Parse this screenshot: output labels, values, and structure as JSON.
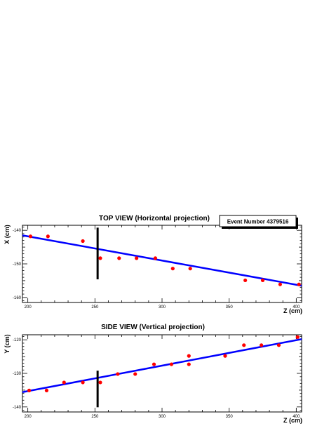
{
  "chart_data": [
    {
      "type": "scatter",
      "title": "TOP VIEW (Horizontal projection)",
      "xlabel": "Z (cm)",
      "ylabel": "X (cm)",
      "xlim": [
        196,
        404
      ],
      "ylim": [
        -161.5,
        -138.5
      ],
      "xticks": [
        200,
        250,
        300,
        350,
        400
      ],
      "yticks": [
        -140,
        -150,
        -160
      ],
      "annotation": "Event Number 4379516",
      "points": {
        "x": [
          202,
          215,
          241,
          254,
          268,
          281,
          295,
          308,
          321,
          362,
          375,
          388,
          402
        ],
        "y": [
          -141.8,
          -141.8,
          -143.2,
          -148.3,
          -148.3,
          -148.3,
          -148.3,
          -151.4,
          -151.4,
          -154.9,
          -154.9,
          -156.1,
          -156.1
        ]
      },
      "fit_line": {
        "x": [
          196,
          404
        ],
        "y": [
          -141.5,
          -156.5
        ]
      },
      "marker_line": {
        "x": 252,
        "y": [
          -139.2,
          -154.6
        ]
      },
      "colors": {
        "points": "#ff0000",
        "fit": "#0000ff",
        "marker": "#000000"
      }
    },
    {
      "type": "scatter",
      "title": "SIDE VIEW (Vertical projection)",
      "xlabel": "Z (cm)",
      "ylabel": "Y (cm)",
      "xlim": [
        196,
        404
      ],
      "ylim": [
        -141.5,
        -118.5
      ],
      "xticks": [
        200,
        250,
        300,
        350,
        400
      ],
      "yticks": [
        -120,
        -130,
        -140
      ],
      "points": {
        "x": [
          201,
          214,
          227,
          241,
          254,
          267,
          280,
          294,
          307,
          320,
          320,
          347,
          361,
          374,
          387,
          401
        ],
        "y": [
          -135.1,
          -135.1,
          -132.7,
          -132.7,
          -132.7,
          -130.2,
          -130.2,
          -127.3,
          -127.3,
          -127.3,
          -124.8,
          -124.8,
          -121.6,
          -121.6,
          -121.6,
          -119.2
        ]
      },
      "fit_line": {
        "x": [
          196,
          404
        ],
        "y": [
          -135.6,
          -119.8
        ]
      },
      "marker_line": {
        "x": 252,
        "y": [
          -129.2,
          -140.1
        ]
      },
      "colors": {
        "points": "#ff0000",
        "fit": "#0000ff",
        "marker": "#000000"
      }
    }
  ]
}
